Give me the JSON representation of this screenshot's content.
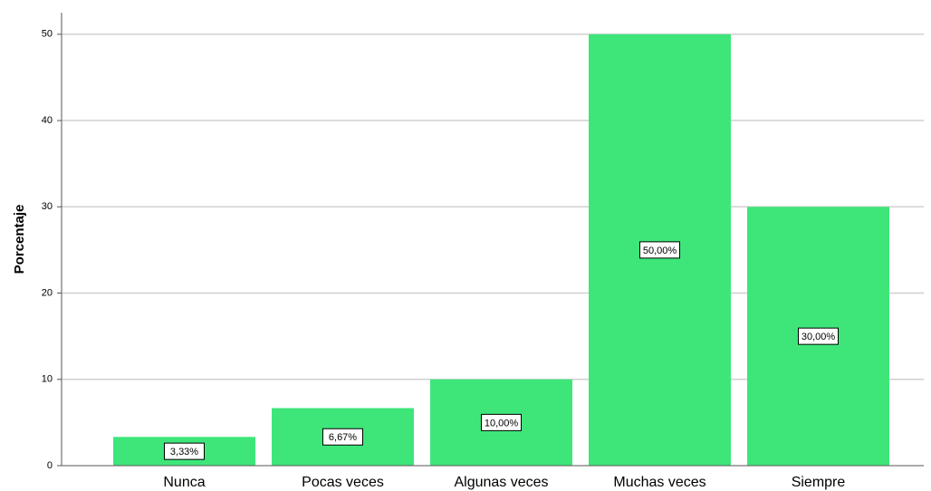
{
  "chart_data": {
    "type": "bar",
    "y_label": "Porcentaje",
    "categories": [
      "Nunca",
      "Pocas veces",
      "Algunas veces",
      "Muchas veces",
      "Siempre"
    ],
    "values": [
      3.33,
      6.67,
      10,
      50,
      30
    ],
    "value_labels": [
      "3,33%",
      "6,67%",
      "10,00%",
      "50,00%",
      "30,00%"
    ],
    "color": "#3ee67a",
    "ylim": [
      0,
      52.5
    ],
    "yticks": [
      0,
      10,
      20,
      30,
      40,
      50
    ],
    "grid": true
  }
}
